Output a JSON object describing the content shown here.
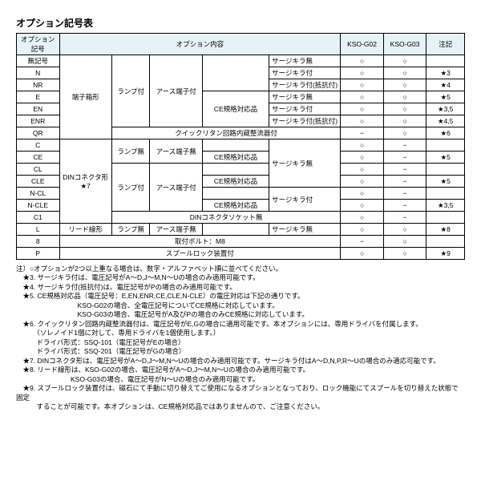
{
  "title": "オプション記号表",
  "headers": {
    "code": "オプション記号",
    "content": "オプション内容",
    "g02": "KSO-G02",
    "g03": "KSO-G03",
    "note": "注記"
  },
  "groups": {
    "terminal": "端子箱形",
    "din": "DINコネクタ形\n★7",
    "lead": "リード線形",
    "lampY": "ランプ付",
    "lampN": "ランプ無",
    "earthY": "アース端子付",
    "earthN": "アース端子無",
    "ce": "CE規格対応品",
    "m8": "取付ボルト：M8",
    "spool": "スプールロック装置付"
  },
  "rows": {
    "none": {
      "code": "無記号",
      "c6": "サージキラ無",
      "g02": "○",
      "g03": "○",
      "n": ""
    },
    "N": {
      "code": "N",
      "c6": "サージキラ付",
      "g02": "○",
      "g03": "○",
      "n": "★3"
    },
    "NR": {
      "code": "NR",
      "c6": "サージキラ付(抵抗付)",
      "g02": "○",
      "g03": "○",
      "n": "★4"
    },
    "E": {
      "code": "E",
      "c6": "サージキラ無",
      "g02": "○",
      "g03": "○",
      "n": "★5"
    },
    "EN": {
      "code": "EN",
      "c6": "サージキラ付",
      "g02": "○",
      "g03": "○",
      "n": "★3,5"
    },
    "ENR": {
      "code": "ENR",
      "c6": "サージキラ付(抵抗付)",
      "g02": "○",
      "g03": "○",
      "n": "★4,5"
    },
    "QR": {
      "code": "QR",
      "c45": "クイックリタン回路内蔵整流器付",
      "g02": "−",
      "g03": "○",
      "n": "★6"
    },
    "C": {
      "code": "C",
      "g02": "○",
      "g03": "−",
      "n": ""
    },
    "CE": {
      "code": "CE",
      "c5": "CE規格対応品",
      "g02": "○",
      "g03": "−",
      "n": "★5"
    },
    "CL": {
      "code": "CL",
      "g02": "○",
      "g03": "−",
      "n": ""
    },
    "CLE": {
      "code": "CLE",
      "c5": "CE規格対応品",
      "g02": "○",
      "g03": "−",
      "n": "★5"
    },
    "NCL": {
      "code": "N-CL",
      "g02": "○",
      "g03": "−",
      "n": ""
    },
    "NCLE": {
      "code": "N-CLE",
      "g02": "○",
      "g03": "−",
      "n": "★3,5"
    },
    "C1": {
      "code": "C1",
      "c45": "DINコネクタソケット無",
      "g02": "○",
      "g03": "−",
      "n": ""
    },
    "L": {
      "code": "L",
      "c6": "サージキラ無",
      "g02": "○",
      "g03": "○",
      "n": "★8"
    },
    "8": {
      "code": "8",
      "g02": "−",
      "g03": "○",
      "n": ""
    },
    "P": {
      "code": "P",
      "g02": "○",
      "g03": "○",
      "n": "★9"
    },
    "surgeN": "サージキラ無",
    "surgeY": "サージキラ付"
  },
  "notes": [
    "注）○オプションが2つ以上重なる場合は、数字・アルファベット順に並べてください。",
    "　★3. サージキラ付は、電圧記号がA～D,J～M,N～Uの場合のみ適用可能です。",
    "　★4. サージキラ付(抵抗付)は、電圧記号がPの場合のみ適用可能です。",
    "　★5. CE規格対応品（電圧記号：E,EN,ENR,CE,CLE,N-CLE）の電圧対応は下記の通りです。",
    "　　　　　　　　　KSO-G02の場合、全電圧記号についてCE規格に対応しています。",
    "　　　　　　　　　KSO-G03の場合、電圧記号がA及びPの場合のみCE規格に対応しています。",
    "　★6. クイックリタン回路内蔵整流器付は、電圧記号がE,Gの場合に適用可能です。本オプションには、専用ドライバを付属します。",
    "　　　（ソレノイド1個に対して、専用ドライバを1個使用します。）",
    "　　　ドライバ形式：SSQ-101（電圧記号がEの場合）",
    "　　　ドライバ形式：SSQ-201（電圧記号がGの場合）",
    "　★7. DINコネクタ形は、電圧記号がA～D,J～M,N～Uの場合のみ適用可能です。サージキラ付はA～D,N,P,R～Uの場合のみ適応可能です。",
    "　★8. リード線形は、KSO-G02の場合、電圧記号がA～D,J～M,N～Uの場合のみ適用可能です。",
    "　　　　　　　　KSO-G03の場合、電圧記号がN～Uの場合のみ適用可能です。",
    "　★9. スプールロック装置付は、磁石にて手動に切り替えてご使用になるオプションとなっており、ロック機能にてスプールを切り替えた状態で固定",
    "　　　することが可能です。本オプションは、CE規格対応品ではありませんので、ご注意ください。"
  ]
}
